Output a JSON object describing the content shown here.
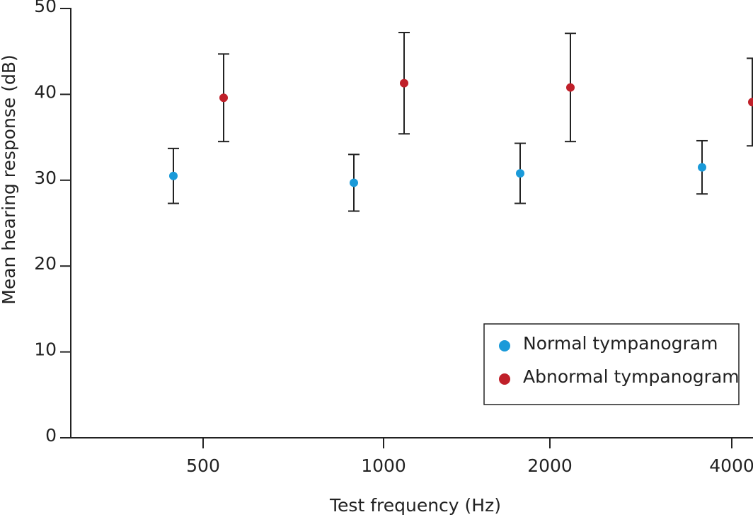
{
  "chart_data": {
    "type": "errorbar",
    "x_label": "Test frequency (Hz)",
    "y_label": "Mean hearing response (dB)",
    "categories": [
      "500",
      "1000",
      "2000",
      "4000"
    ],
    "series": [
      {
        "name": "Normal tympanogram",
        "color": "#1a9ad9",
        "values": [
          30.5,
          29.7,
          30.8,
          31.5
        ],
        "errors": [
          3.2,
          3.3,
          3.5,
          3.1
        ]
      },
      {
        "name": "Abnormal tympanogram",
        "color": "#c0202a",
        "values": [
          39.6,
          41.3,
          40.8,
          39.1
        ],
        "errors": [
          5.1,
          5.9,
          6.3,
          5.1
        ]
      }
    ],
    "ylim": [
      0,
      50
    ],
    "yticks": [
      0,
      10,
      20,
      30,
      40,
      50
    ],
    "legend": "lower right"
  }
}
